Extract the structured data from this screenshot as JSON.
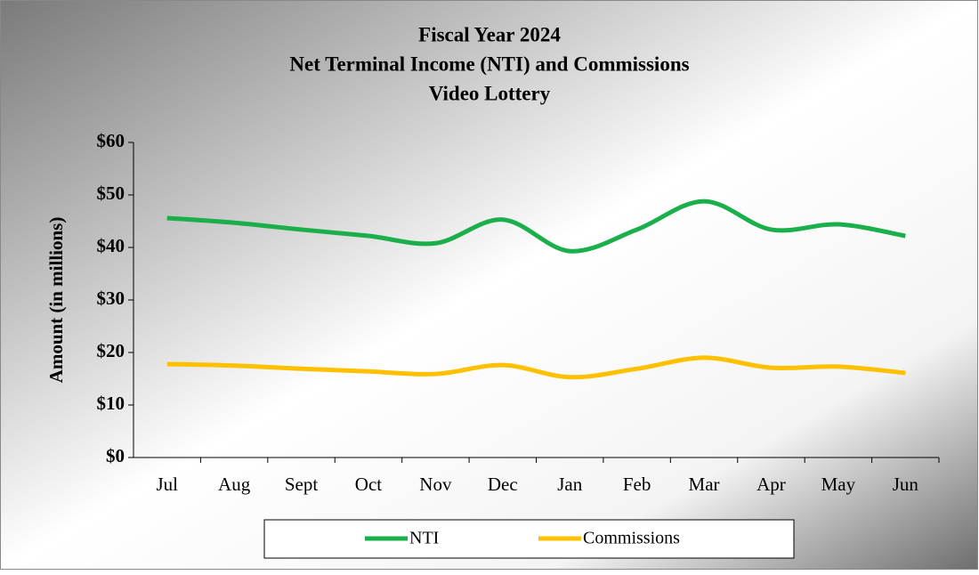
{
  "chart_data": {
    "type": "line",
    "title": [
      "Fiscal Year 2024",
      "Net Terminal Income (NTI) and Commissions",
      "Video Lottery"
    ],
    "y_label": "Amount (in millions)",
    "categories": [
      "Jul",
      "Aug",
      "Sept",
      "Oct",
      "Nov",
      "Dec",
      "Jan",
      "Feb",
      "Mar",
      "Apr",
      "May",
      "Jun"
    ],
    "series": [
      {
        "name": "NTI",
        "color": "#1aaf4b",
        "values": [
          45.6,
          44.7,
          43.4,
          42.2,
          40.8,
          45.3,
          39.3,
          43.4,
          48.8,
          43.4,
          44.4,
          42.2
        ]
      },
      {
        "name": "Commissions",
        "color": "#ffc000",
        "values": [
          17.8,
          17.5,
          16.9,
          16.4,
          15.9,
          17.6,
          15.3,
          16.9,
          19.0,
          17.1,
          17.3,
          16.1
        ]
      }
    ],
    "ylim": [
      0,
      60
    ],
    "yticks": [
      {
        "value": 0,
        "label": "$0"
      },
      {
        "value": 10,
        "label": "$10"
      },
      {
        "value": 20,
        "label": "$20"
      },
      {
        "value": 30,
        "label": "$30"
      },
      {
        "value": 40,
        "label": "$40"
      },
      {
        "value": 50,
        "label": "$50"
      },
      {
        "value": 60,
        "label": "$60"
      }
    ],
    "legend": "bottom"
  }
}
